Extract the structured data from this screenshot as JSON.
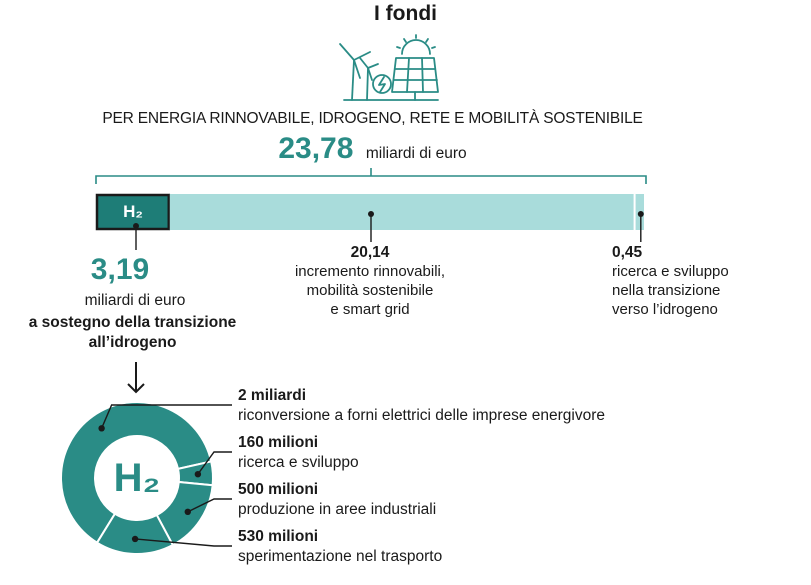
{
  "title": "I fondi",
  "subtitle": "PER ENERGIA RINNOVABILE, IDROGENO, RETE E MOBILITÀ SOSTENIBILE",
  "total": {
    "value": "23,78",
    "unit": "miliardi di euro"
  },
  "h2_label": "H₂",
  "h2_block": {
    "value": "3,19",
    "unit": "miliardi di euro",
    "desc_line1": "a sostegno della transizione",
    "desc_line2": "all’idrogeno"
  },
  "segment_mid": {
    "value": "20,14",
    "line1": "incremento rinnovabili,",
    "line2": "mobilità sostenibile",
    "line3": "e smart grid"
  },
  "segment_right": {
    "value": "0,45",
    "line1": "ricerca e sviluppo",
    "line2": "nella transizione",
    "line3": "verso l’idrogeno"
  },
  "donut": {
    "center_label": "H₂",
    "items": [
      {
        "value": "2 miliardi",
        "desc": "riconversione a forni elettrici delle imprese energivore"
      },
      {
        "value": "160 milioni",
        "desc": "ricerca e sviluppo"
      },
      {
        "value": "500 milioni",
        "desc": "produzione in aree industriali"
      },
      {
        "value": "530 milioni",
        "desc": "sperimentazione nel trasporto"
      }
    ]
  },
  "colors": {
    "accent": "#2a8c86",
    "dark": "#1e7d77",
    "light": "#a9dcdb",
    "ink": "#1a1a1a"
  },
  "icon": "renewable-energy-icon",
  "chart_data": [
    {
      "type": "bar",
      "orientation": "horizontal-stacked",
      "unit": "miliardi di euro",
      "total": 23.78,
      "categories": [
        "a sostegno della transizione all’idrogeno",
        "incremento rinnovabili, mobilità sostenibile e smart grid",
        "ricerca e sviluppo nella transizione verso l’idrogeno"
      ],
      "values": [
        3.19,
        20.14,
        0.45
      ]
    },
    {
      "type": "pie",
      "subtype": "donut",
      "unit": "milioni di euro",
      "categories": [
        "riconversione a forni elettrici delle imprese energivore",
        "ricerca e sviluppo",
        "produzione in aree industriali",
        "sperimentazione nel trasporto"
      ],
      "values": [
        2000,
        160,
        500,
        530
      ]
    }
  ]
}
